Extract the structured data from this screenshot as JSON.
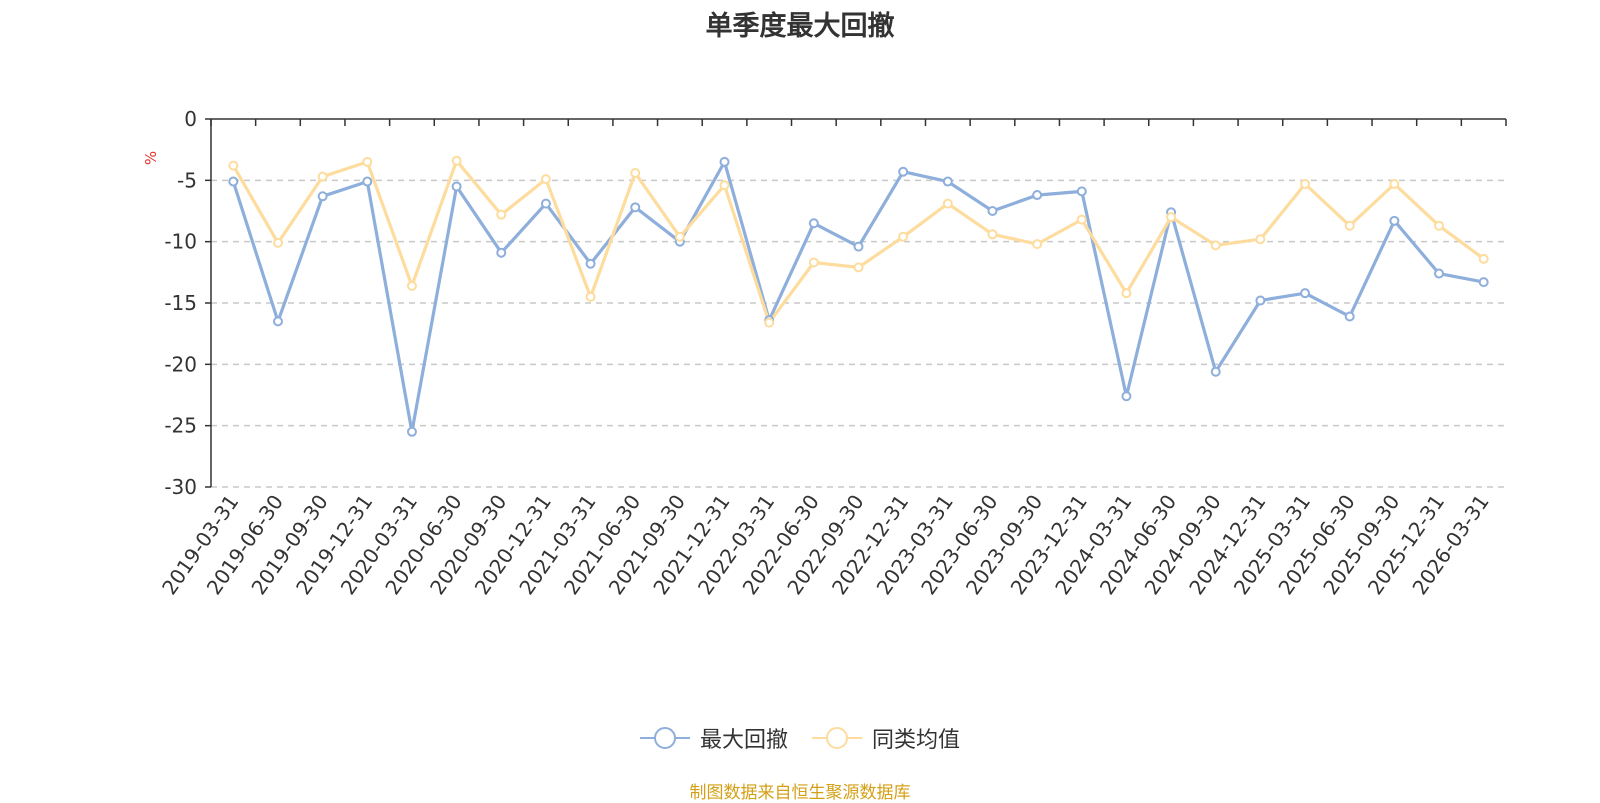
{
  "colors": {
    "series_1": "#8eaedb",
    "series_2": "#fddc9e",
    "unit": "#e3342f",
    "source": "#d4a017",
    "axis": "#333333",
    "grid": "#c8c8c8"
  },
  "source_note": "制图数据来自恒生聚源数据库",
  "chart_data": {
    "type": "line",
    "title": "单季度最大回撤",
    "ylabel": "%",
    "xlabel": "",
    "ylim": [
      -30,
      0
    ],
    "yticks": [
      0,
      -5,
      -10,
      -15,
      -20,
      -25,
      -30
    ],
    "grid": "dashed-horizontal",
    "legend_position": "bottom",
    "categories": [
      "2019-03-31",
      "2019-06-30",
      "2019-09-30",
      "2019-12-31",
      "2020-03-31",
      "2020-06-30",
      "2020-09-30",
      "2020-12-31",
      "2021-03-31",
      "2021-06-30",
      "2021-09-30",
      "2021-12-31",
      "2022-03-31",
      "2022-06-30",
      "2022-09-30",
      "2022-12-31",
      "2023-03-31",
      "2023-06-30",
      "2023-09-30",
      "2023-12-31",
      "2024-03-31",
      "2024-06-30",
      "2024-09-30",
      "2024-12-31",
      "2025-03-31",
      "2025-06-30",
      "2025-09-30",
      "2025-12-31",
      "2026-03-31"
    ],
    "series": [
      {
        "name": "最大回撤",
        "values": [
          -5.1,
          -16.5,
          -6.3,
          -5.1,
          -25.5,
          -5.5,
          -10.9,
          -6.9,
          -11.8,
          -7.2,
          -10.0,
          -3.5,
          -16.4,
          -8.5,
          -10.4,
          -4.3,
          -5.1,
          -7.5,
          -6.2,
          -5.9,
          -22.6,
          -7.6,
          -20.6,
          -14.8,
          -14.2,
          -16.1,
          -8.3,
          -12.6,
          -13.3
        ]
      },
      {
        "name": "同类均值",
        "values": [
          -3.8,
          -10.1,
          -4.7,
          -3.5,
          -13.6,
          -3.4,
          -7.8,
          -4.9,
          -14.5,
          -4.4,
          -9.6,
          -5.4,
          -16.6,
          -11.7,
          -12.1,
          -9.6,
          -6.9,
          -9.4,
          -10.2,
          -8.2,
          -14.2,
          -8.0,
          -10.3,
          -9.8,
          -5.3,
          -8.7,
          -5.3,
          -8.7,
          -11.4
        ]
      }
    ]
  }
}
